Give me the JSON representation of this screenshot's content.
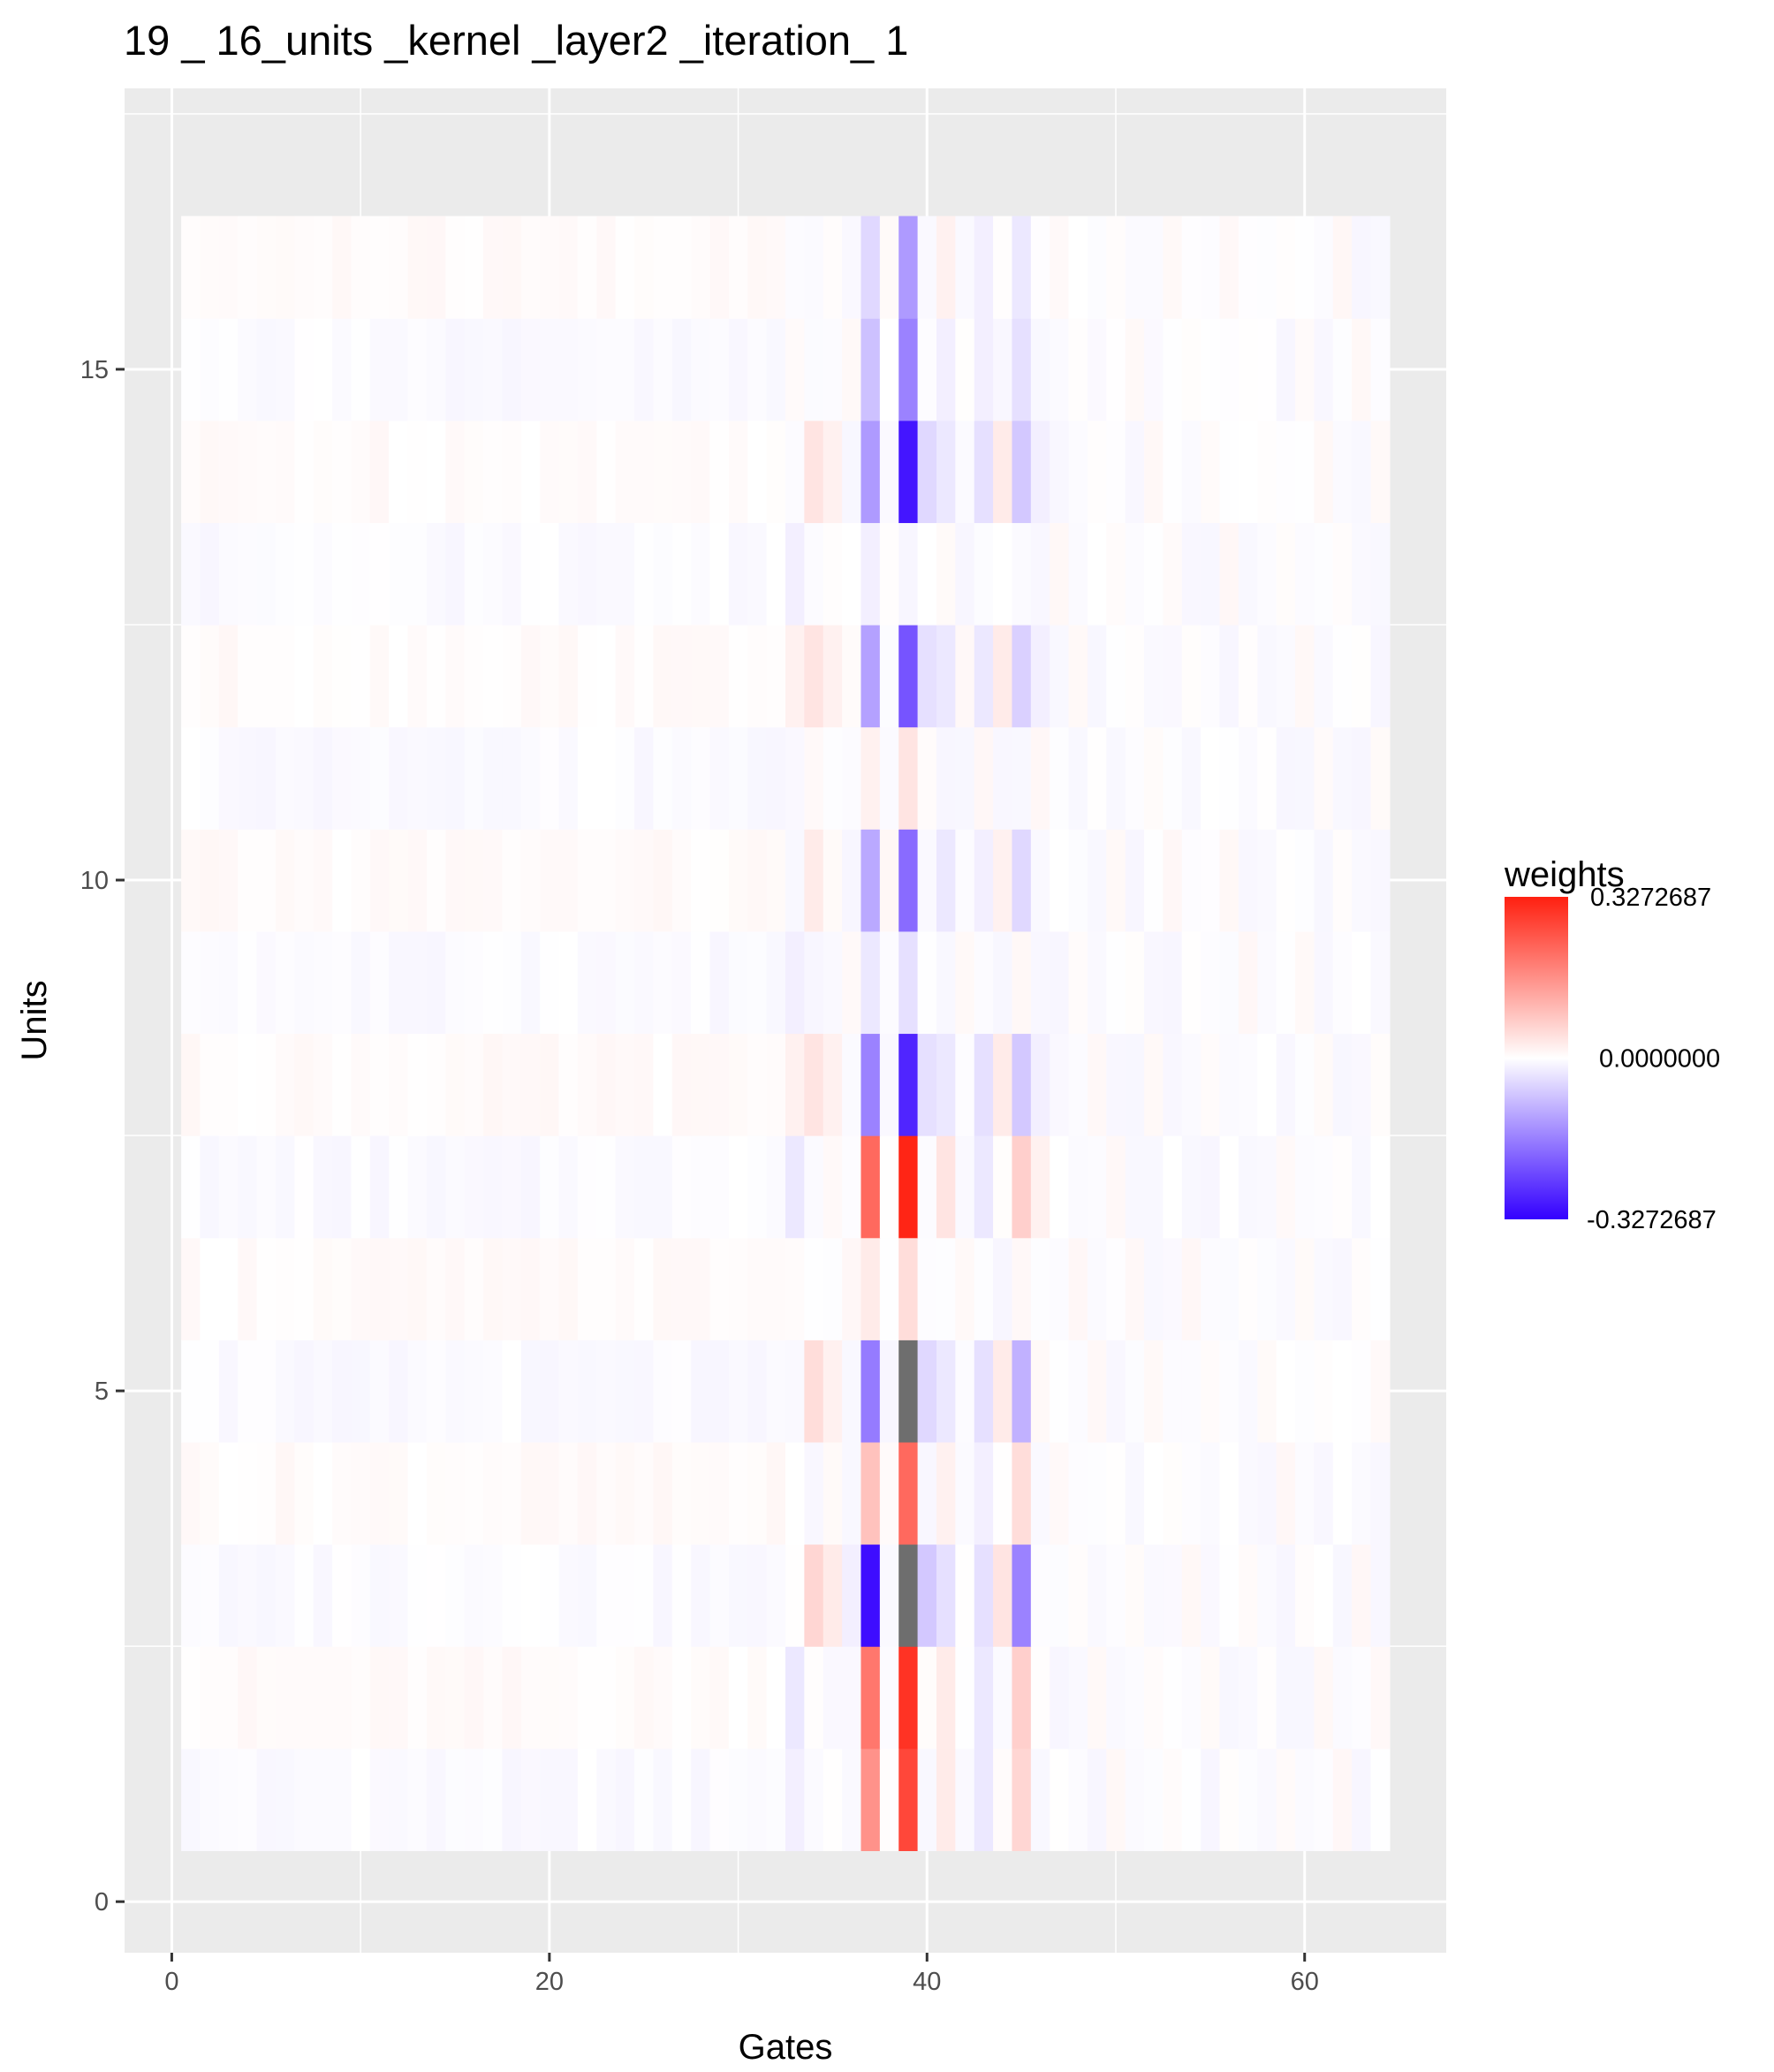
{
  "chart_data": {
    "type": "heatmap",
    "title": "19 _ 16_units _kernel _layer2 _iteration_ 1",
    "xlabel": "Gates",
    "ylabel": "Units",
    "xlim": [
      -2.5,
      67.5
    ],
    "ylim": [
      -0.5,
      17.75
    ],
    "x_ticks": [
      0,
      20,
      40,
      60
    ],
    "y_ticks": [
      0,
      5,
      10,
      15
    ],
    "grid": true,
    "n_gates": 64,
    "n_units": 16,
    "legend": {
      "title": "weights",
      "position": "right",
      "max_label": "0.3272687",
      "mid_label": "0.0000000",
      "min_label": "-0.3272687",
      "max": 0.3272687,
      "min": -0.3272687
    },
    "colors": {
      "low": "#3300ff",
      "mid": "#ffffff",
      "high": "#ff2010",
      "na": "#6e6e6e",
      "panel": "#ebebeb",
      "grid": "#ffffff"
    },
    "units": [
      {
        "unit": 1,
        "values": {
          "33": -0.02,
          "37": 0.16,
          "39": 0.27,
          "41": 0.03,
          "43": -0.03,
          "45": 0.06
        }
      },
      {
        "unit": 2,
        "values": {
          "33": -0.03,
          "37": 0.2,
          "39": 0.3,
          "41": 0.03,
          "43": -0.03,
          "45": 0.07
        }
      },
      {
        "unit": 3,
        "values": {
          "34": 0.06,
          "35": 0.03,
          "36": -0.02,
          "37": -0.31,
          "39": null,
          "40": -0.07,
          "41": -0.04,
          "43": -0.04,
          "44": 0.04,
          "45": -0.16
        }
      },
      {
        "unit": 4,
        "values": {
          "37": 0.09,
          "39": 0.22,
          "41": 0.02,
          "43": -0.02,
          "45": 0.05
        }
      },
      {
        "unit": 5,
        "values": {
          "34": 0.05,
          "35": 0.02,
          "37": -0.17,
          "39": null,
          "40": -0.05,
          "41": -0.03,
          "43": -0.04,
          "44": 0.03,
          "45": -0.1
        }
      },
      {
        "unit": 6,
        "values": {
          "37": 0.03,
          "39": 0.05
        }
      },
      {
        "unit": 7,
        "values": {
          "33": -0.03,
          "37": 0.22,
          "39": 0.32,
          "41": 0.04,
          "43": -0.03,
          "45": 0.07,
          "46": 0.02
        }
      },
      {
        "unit": 8,
        "values": {
          "33": 0.02,
          "34": 0.04,
          "35": 0.02,
          "37": -0.16,
          "39": -0.28,
          "40": -0.04,
          "41": -0.03,
          "43": -0.04,
          "44": 0.03,
          "45": -0.07,
          "46": -0.02
        }
      },
      {
        "unit": 9,
        "values": {
          "33": -0.02,
          "37": -0.03,
          "39": -0.04
        }
      },
      {
        "unit": 10,
        "values": {
          "34": 0.03,
          "37": -0.11,
          "39": -0.19,
          "41": -0.03,
          "43": -0.02,
          "44": 0.02,
          "45": -0.05
        }
      },
      {
        "unit": 11,
        "values": {
          "37": 0.02,
          "39": 0.04
        }
      },
      {
        "unit": 12,
        "values": {
          "33": 0.02,
          "34": 0.04,
          "35": 0.02,
          "37": -0.12,
          "39": -0.22,
          "40": -0.04,
          "41": -0.03,
          "43": -0.03,
          "44": 0.03,
          "45": -0.06,
          "46": -0.02
        }
      },
      {
        "unit": 13,
        "values": {
          "33": -0.02,
          "37": -0.02
        }
      },
      {
        "unit": 14,
        "values": {
          "34": 0.04,
          "35": 0.02,
          "37": -0.13,
          "39": -0.3,
          "40": -0.05,
          "41": -0.03,
          "43": -0.04,
          "44": 0.03,
          "45": -0.07,
          "46": -0.02
        }
      },
      {
        "unit": 15,
        "values": {
          "37": -0.08,
          "39": -0.16,
          "41": -0.02,
          "43": -0.02,
          "45": -0.04
        }
      },
      {
        "unit": 16,
        "values": {
          "37": -0.05,
          "39": -0.13,
          "41": 0.02,
          "43": -0.02,
          "45": -0.03
        }
      }
    ]
  }
}
